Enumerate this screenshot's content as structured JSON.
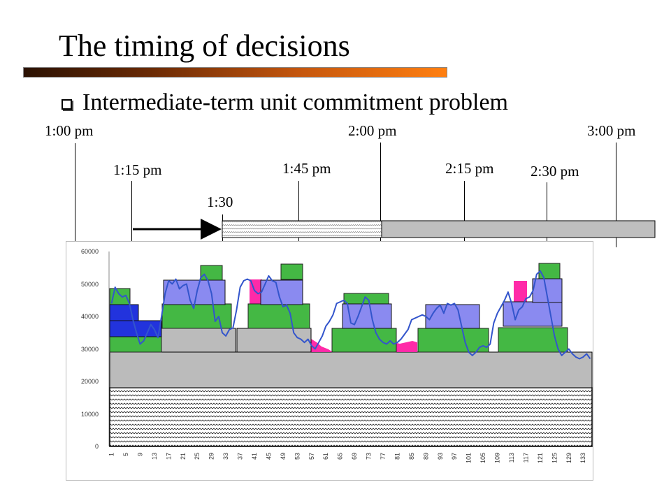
{
  "slide": {
    "title": "The timing of decisions",
    "bullet": "Intermediate-term unit commitment problem"
  },
  "timeline": {
    "labels": {
      "t100": "1:00 pm",
      "t115": "1:15 pm",
      "t130": "1:30",
      "t145": "1:45 pm",
      "t200": "2:00 pm",
      "t215": "2:15 pm",
      "t230": "2:30 pm",
      "t300": "3:00 pm"
    }
  },
  "chart_data": {
    "type": "area",
    "ylim": [
      0,
      60000
    ],
    "y_ticks": [
      "0",
      "10000",
      "20000",
      "30000",
      "40000",
      "50000",
      "60000"
    ],
    "x_ticks": [
      "1",
      "5",
      "9",
      "13",
      "17",
      "21",
      "25",
      "29",
      "33",
      "37",
      "41",
      "45",
      "49",
      "53",
      "57",
      "61",
      "65",
      "69",
      "73",
      "77",
      "81",
      "85",
      "89",
      "93",
      "97",
      "101",
      "105",
      "109",
      "113",
      "117",
      "121",
      "125",
      "129",
      "133"
    ],
    "grid": false,
    "colors": {
      "line": "#3355cc",
      "pink": "#ff2aa8",
      "green": "#44b844",
      "blue": "#2233dd",
      "lavender": "#8a8af0",
      "gray": "#bbbbbb"
    },
    "base_blocks": [
      {
        "name": "hatched",
        "y0": 0,
        "y1": 18000
      },
      {
        "name": "gray",
        "y0": 18000,
        "y1": 29000
      }
    ],
    "series": [
      {
        "values": [
          44000,
          49000,
          47000,
          46000,
          46500,
          44000,
          39000,
          35000,
          31500,
          32500,
          35000,
          37500,
          36000,
          33500,
          40000,
          47000,
          51000,
          50000,
          51500,
          48500,
          49500,
          50000,
          45000,
          42500,
          48000,
          52000,
          53000,
          51000,
          47000,
          38500,
          40000,
          35000,
          34000,
          36000,
          36500,
          42000,
          49000,
          51000,
          51500,
          51000,
          48000,
          47000,
          47500,
          50000,
          52500,
          51000,
          50500,
          46000,
          43000,
          43500,
          41000,
          35000,
          33500,
          33000,
          32000,
          33000,
          31000,
          30000,
          32000,
          34000,
          37000,
          38500,
          40500,
          44000,
          44500,
          45000,
          44000,
          38000,
          37500,
          40000,
          43000,
          46000,
          45000,
          39000,
          35000,
          33000,
          32000,
          31500,
          32500,
          31500,
          32000,
          33000,
          34500,
          36000,
          39000,
          39500,
          40000,
          40500,
          40000,
          39000,
          41000,
          42500,
          43500,
          41000,
          44000,
          43500,
          44000,
          42000,
          37000,
          32000,
          29000,
          28000,
          29000,
          30500,
          31000,
          30500,
          31500,
          38000,
          41000,
          43000,
          45000,
          47500,
          44000,
          39000,
          42000,
          43000,
          45500,
          46000,
          48000,
          53000,
          54000,
          52000,
          46000,
          40000,
          34000,
          30000,
          28000,
          29000,
          30000,
          28500,
          27500,
          27000,
          27500,
          28500,
          27000
        ]
      }
    ]
  }
}
